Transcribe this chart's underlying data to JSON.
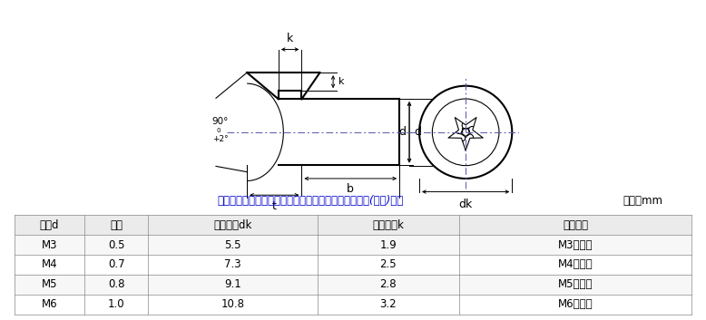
{
  "table_header": [
    "规格d",
    "牙距",
    "头部直径dk",
    "头部厚度k",
    "搭配扳手"
  ],
  "table_rows": [
    [
      "M3",
      "0.5",
      "5.5",
      "1.9",
      "M3用扳手"
    ],
    [
      "M4",
      "0.7",
      "7.3",
      "2.5",
      "M4用扳手"
    ],
    [
      "M5",
      "0.8",
      "9.1",
      "2.8",
      "M5用扳手"
    ],
    [
      "M6",
      "1.0",
      "10.8",
      "3.2",
      "M6用扳手"
    ]
  ],
  "note_text": "螺母、平垫圈、挡圈等尺寸：以配套使用的螺丝的直径(粗细)为准",
  "unit_text": "单位：mm",
  "angle_label": "90°+2°",
  "line_color": "#000000",
  "note_color": "#0000CD",
  "bg_color": "#FFFFFF",
  "col_boundaries": [
    0.02,
    0.12,
    0.21,
    0.45,
    0.65,
    0.98
  ]
}
